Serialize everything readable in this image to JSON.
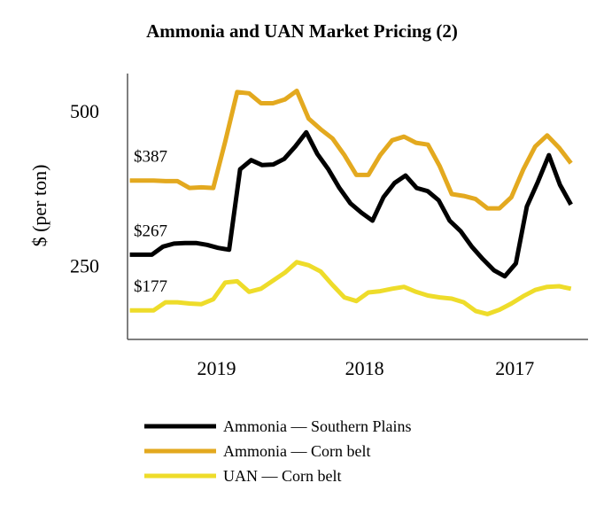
{
  "chart_data": {
    "type": "line",
    "title": "Ammonia and UAN Market Pricing (2)",
    "xlabel": "",
    "ylabel": "$ (per ton)",
    "ylim": [
      130,
      560
    ],
    "xlim": [
      0,
      43
    ],
    "x_ticks": [
      {
        "label": "2019",
        "x": 8.3
      },
      {
        "label": "2018",
        "x": 22.4
      },
      {
        "label": "2017",
        "x": 36.7
      }
    ],
    "y_ticks": [
      {
        "label": "250",
        "value": 250
      },
      {
        "label": "500",
        "value": 500
      }
    ],
    "annotations": [
      {
        "text": "$387",
        "series": 1
      },
      {
        "text": "$267",
        "series": 0
      },
      {
        "text": "$177",
        "series": 2
      }
    ],
    "series": [
      {
        "name": "Ammonia — Southern Plains",
        "color": "#000000",
        "values": [
          267,
          267,
          267,
          280,
          285,
          286,
          286,
          283,
          278,
          275,
          405,
          420,
          412,
          413,
          422,
          442,
          465,
          430,
          405,
          375,
          350,
          335,
          322,
          360,
          383,
          395,
          375,
          370,
          355,
          322,
          305,
          280,
          260,
          242,
          232,
          253,
          345,
          385,
          428,
          380,
          348
        ]
      },
      {
        "name": "Ammonia — Corn belt",
        "color": "#E3A91F",
        "values": [
          387,
          387,
          387,
          386,
          386,
          375,
          376,
          375,
          450,
          530,
          528,
          512,
          512,
          518,
          532,
          487,
          470,
          455,
          428,
          396,
          396,
          428,
          452,
          458,
          448,
          445,
          410,
          365,
          362,
          357,
          342,
          342,
          360,
          405,
          442,
          460,
          440,
          415
        ]
      },
      {
        "name": "UAN — Corn belt",
        "color": "#EEDC2A",
        "values": [
          177,
          177,
          177,
          190,
          190,
          188,
          187,
          195,
          222,
          224,
          207,
          212,
          225,
          238,
          255,
          250,
          240,
          218,
          198,
          192,
          206,
          208,
          212,
          215,
          207,
          201,
          198,
          196,
          190,
          176,
          171,
          178,
          188,
          200,
          210,
          215,
          216,
          212
        ]
      }
    ],
    "legend": {
      "position": "bottom"
    }
  }
}
